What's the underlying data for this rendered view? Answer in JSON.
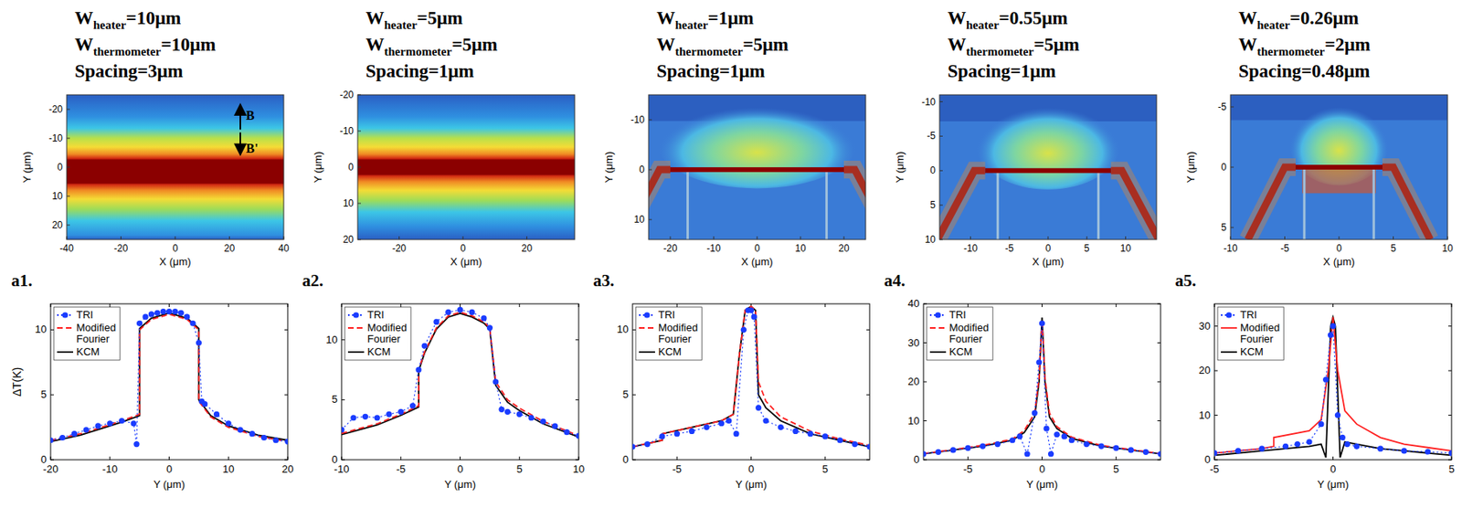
{
  "panels": [
    {
      "label": "a1.",
      "header": [
        {
          "main": "W",
          "sub": "heater",
          "rest": "=10μm"
        },
        {
          "main": "W",
          "sub": "thermometer",
          "rest": "=10μm"
        },
        {
          "main": "Spacing=3μm"
        }
      ],
      "image": {
        "xlabel": "X (μm)",
        "ylabel": "Y (μm)",
        "xlim": [
          -40,
          40
        ],
        "xticks": [
          -40,
          -20,
          0,
          20,
          40
        ],
        "ylim": [
          -25,
          25
        ],
        "yticks": [
          -20,
          -10,
          0,
          10,
          20
        ],
        "annotations": [
          "B",
          "B'"
        ]
      }
    },
    {
      "label": "a2.",
      "header": [
        {
          "main": "W",
          "sub": "heater",
          "rest": "=5μm"
        },
        {
          "main": "W",
          "sub": "thermometer",
          "rest": "=5μm"
        },
        {
          "main": "Spacing=1μm"
        }
      ],
      "image": {
        "xlabel": "X (μm)",
        "ylabel": "Y (μm)",
        "xlim": [
          -33,
          35
        ],
        "xticks": [
          -20,
          0,
          20
        ],
        "ylim": [
          -20,
          20
        ],
        "yticks": [
          -20,
          -10,
          0,
          10,
          20
        ]
      }
    },
    {
      "label": "a3.",
      "header": [
        {
          "main": "W",
          "sub": "heater",
          "rest": "=1μm"
        },
        {
          "main": "W",
          "sub": "thermometer",
          "rest": "=5μm"
        },
        {
          "main": "Spacing=1μm"
        }
      ],
      "image": {
        "xlabel": "X (μm)",
        "ylabel": "Y (μm)",
        "xlim": [
          -25,
          25
        ],
        "xticks": [
          -20,
          -10,
          0,
          10,
          20
        ],
        "ylim": [
          -15,
          14
        ],
        "yticks": [
          -10,
          0,
          10
        ]
      }
    },
    {
      "label": "a4.",
      "header": [
        {
          "main": "W",
          "sub": "heater",
          "rest": "=0.55μm"
        },
        {
          "main": "W",
          "sub": "thermometer",
          "rest": "=5μm"
        },
        {
          "main": "Spacing=1μm"
        }
      ],
      "image": {
        "xlabel": "X (μm)",
        "ylabel": "Y (μm)",
        "xlim": [
          -14,
          14
        ],
        "xticks": [
          -10,
          -5,
          0,
          5,
          10
        ],
        "ylim": [
          -11,
          10
        ],
        "yticks": [
          -10,
          -5,
          0,
          5,
          10
        ]
      }
    },
    {
      "label": "a5.",
      "header": [
        {
          "main": "W",
          "sub": "heater",
          "rest": "=0.26μm"
        },
        {
          "main": "W",
          "sub": "thermometer",
          "rest": "=2μm"
        },
        {
          "main": "Spacing=0.48μm"
        }
      ],
      "image": {
        "xlabel": "X (μm)",
        "ylabel": "Y (μm)",
        "xlim": [
          -10,
          10
        ],
        "xticks": [
          -10,
          -5,
          0,
          5,
          10
        ],
        "ylim": [
          -6,
          6
        ],
        "yticks": [
          -5,
          0,
          5
        ]
      }
    }
  ],
  "chart_data": [
    {
      "type": "line",
      "xlabel": "Y (μm)",
      "ylabel": "ΔT(K)",
      "legend": "upper left",
      "xlim": [
        -20,
        20
      ],
      "xticks": [
        -20,
        -10,
        0,
        10,
        20
      ],
      "ylim": [
        0,
        12
      ],
      "yticks": [
        0,
        5,
        10
      ],
      "series": [
        {
          "name": "TRI",
          "color": "#1a3cff",
          "marker": "circle",
          "line_style": "dotted",
          "x": [
            -20,
            -18,
            -16,
            -14,
            -12,
            -10,
            -8,
            -6,
            -5.5,
            -5,
            -4,
            -3,
            -2,
            -1,
            0,
            1,
            2,
            3,
            4,
            5,
            5.5,
            6,
            8,
            10,
            12,
            14,
            16,
            18,
            20
          ],
          "values": [
            1.5,
            1.7,
            2.0,
            2.3,
            2.6,
            2.8,
            3.0,
            2.8,
            1.2,
            10.5,
            11.0,
            11.2,
            11.3,
            11.4,
            11.4,
            11.4,
            11.3,
            11.0,
            10.5,
            9.0,
            4.5,
            4.3,
            3.5,
            2.8,
            2.3,
            2.0,
            1.7,
            1.5,
            1.4
          ]
        },
        {
          "name": "Modified Fourier",
          "color": "#ff2020",
          "line_style": "dashed",
          "x": [
            -20,
            -15,
            -10,
            -8,
            -5,
            -5,
            -3,
            0,
            3,
            5,
            5,
            7,
            10,
            15,
            20
          ],
          "values": [
            1.5,
            2.0,
            2.7,
            3.0,
            3.5,
            10.0,
            10.8,
            11.2,
            10.8,
            10.0,
            4.5,
            3.3,
            2.5,
            1.8,
            1.4
          ]
        },
        {
          "name": "KCM",
          "color": "#000000",
          "line_style": "solid",
          "x": [
            -20,
            -15,
            -10,
            -8,
            -5,
            -5,
            -3,
            0,
            3,
            5,
            5,
            7,
            10,
            15,
            20
          ],
          "values": [
            1.4,
            1.9,
            2.6,
            2.9,
            3.4,
            10.1,
            10.9,
            11.3,
            10.9,
            10.1,
            4.6,
            3.4,
            2.6,
            1.9,
            1.5
          ]
        }
      ]
    },
    {
      "type": "line",
      "xlabel": "Y (μm)",
      "legend": "upper left",
      "xlim": [
        -10,
        10
      ],
      "xticks": [
        -10,
        -5,
        0,
        5,
        10
      ],
      "ylim": [
        0,
        13
      ],
      "yticks": [
        0,
        5,
        10
      ],
      "series": [
        {
          "name": "TRI",
          "color": "#1a3cff",
          "marker": "circle",
          "line_style": "dotted",
          "x": [
            -10,
            -9,
            -8,
            -7,
            -6,
            -5,
            -4,
            -3.5,
            -3,
            -2,
            -1,
            0,
            1,
            2,
            2.5,
            3,
            3.5,
            4,
            5,
            6,
            7,
            8,
            9,
            10
          ],
          "values": [
            2.5,
            3.5,
            3.6,
            3.5,
            3.8,
            4.0,
            4.5,
            7.5,
            9.5,
            11.5,
            12.3,
            12.5,
            12.3,
            11.8,
            11.0,
            6.5,
            4.2,
            4.0,
            3.8,
            3.5,
            3.2,
            2.8,
            2.3,
            2.0
          ]
        },
        {
          "name": "Modified Fourier",
          "color": "#ff2020",
          "line_style": "dashed",
          "x": [
            -10,
            -7,
            -5,
            -3.5,
            -3.5,
            -3,
            -2,
            -1,
            0,
            1,
            2,
            2.5,
            3,
            4,
            5,
            7,
            10
          ],
          "values": [
            2.2,
            3.0,
            3.8,
            4.5,
            7.5,
            9.0,
            11.0,
            12.0,
            12.3,
            12.0,
            11.5,
            11.0,
            6.5,
            5.0,
            4.3,
            3.2,
            2.0
          ]
        },
        {
          "name": "KCM",
          "color": "#000000",
          "line_style": "solid",
          "x": [
            -10,
            -7,
            -5,
            -3.5,
            -3.5,
            -3,
            -2,
            -1,
            0,
            1,
            2,
            2.5,
            3,
            4,
            5,
            7,
            10
          ],
          "values": [
            2.1,
            2.9,
            3.7,
            4.4,
            7.4,
            8.9,
            10.9,
            11.9,
            12.2,
            11.9,
            11.4,
            10.9,
            6.2,
            4.8,
            4.1,
            3.0,
            1.9
          ]
        }
      ]
    },
    {
      "type": "line",
      "xlabel": "Y (μm)",
      "legend": "upper left",
      "xlim": [
        -8,
        8
      ],
      "xticks": [
        -5,
        0,
        5
      ],
      "ylim": [
        0,
        12
      ],
      "yticks": [
        0,
        5,
        10
      ],
      "series": [
        {
          "name": "TRI",
          "color": "#1a3cff",
          "marker": "circle",
          "line_style": "dotted",
          "x": [
            -8,
            -7,
            -6,
            -5,
            -4,
            -3,
            -2,
            -1.5,
            -1,
            -0.5,
            -0.2,
            0,
            0.2,
            0.5,
            1,
            2,
            3,
            4,
            5,
            6,
            7,
            8
          ],
          "values": [
            1.0,
            1.2,
            1.8,
            2.0,
            2.2,
            2.5,
            2.8,
            3.0,
            2.0,
            10.0,
            11.5,
            11.5,
            11.0,
            4.0,
            3.0,
            2.5,
            2.2,
            2.0,
            1.8,
            1.5,
            1.2,
            1.0
          ]
        },
        {
          "name": "Modified Fourier",
          "color": "#ff2020",
          "line_style": "dashed",
          "x": [
            -8,
            -6,
            -6,
            -4,
            -2,
            -1.2,
            -0.8,
            -0.4,
            0,
            0.3,
            0.5,
            1,
            2,
            4,
            6,
            8
          ],
          "values": [
            1.0,
            1.5,
            2.0,
            2.5,
            3.0,
            3.5,
            8.0,
            11.5,
            11.8,
            11.5,
            6.0,
            4.5,
            3.3,
            2.2,
            1.6,
            1.1
          ]
        },
        {
          "name": "KCM",
          "color": "#000000",
          "line_style": "solid",
          "x": [
            -8,
            -6,
            -6,
            -4,
            -2,
            -1.2,
            -0.8,
            -0.4,
            0,
            0.3,
            0.5,
            1,
            2,
            4,
            6,
            8
          ],
          "values": [
            1.0,
            1.5,
            2.0,
            2.5,
            3.0,
            3.5,
            8.0,
            11.5,
            11.8,
            11.5,
            5.0,
            4.0,
            3.0,
            2.0,
            1.5,
            1.0
          ]
        }
      ]
    },
    {
      "type": "line",
      "xlabel": "Y (μm)",
      "legend": "upper left",
      "xlim": [
        -8,
        8
      ],
      "xticks": [
        -5,
        0,
        5
      ],
      "ylim": [
        0,
        40
      ],
      "yticks": [
        0,
        10,
        20,
        30,
        40
      ],
      "series": [
        {
          "name": "TRI",
          "color": "#1a3cff",
          "marker": "circle",
          "line_style": "dotted",
          "x": [
            -8,
            -7,
            -6,
            -5,
            -4,
            -3,
            -2,
            -1.5,
            -1,
            -0.5,
            -0.2,
            0,
            0.3,
            0.6,
            1,
            1.5,
            2,
            3,
            4,
            5,
            6,
            7,
            8
          ],
          "values": [
            1.5,
            2.0,
            2.5,
            3.0,
            3.5,
            4.0,
            5.0,
            6.0,
            1.5,
            12.0,
            25.0,
            35.0,
            8.0,
            1.5,
            6.5,
            6.0,
            5.0,
            4.0,
            3.5,
            3.0,
            2.5,
            2.0,
            1.5
          ]
        },
        {
          "name": "Modified Fourier",
          "color": "#ff2020",
          "line_style": "dashed",
          "x": [
            -8,
            -6,
            -4,
            -2,
            -1.2,
            -0.5,
            -0.2,
            0,
            0.2,
            0.5,
            1,
            2,
            4,
            6,
            8
          ],
          "values": [
            1.6,
            2.6,
            3.7,
            5.3,
            7.5,
            12.0,
            21.0,
            36.0,
            21.0,
            12.0,
            8.5,
            5.8,
            3.7,
            2.6,
            1.6
          ]
        },
        {
          "name": "KCM",
          "color": "#000000",
          "line_style": "solid",
          "x": [
            -8,
            -6,
            -4,
            -2,
            -1.2,
            -0.5,
            -0.2,
            0,
            0.2,
            0.5,
            1,
            2,
            4,
            6,
            8
          ],
          "values": [
            1.5,
            2.5,
            3.5,
            5.0,
            7.0,
            11.0,
            20.0,
            36.5,
            20.0,
            11.0,
            8.0,
            5.5,
            3.5,
            2.5,
            1.5
          ]
        }
      ]
    },
    {
      "type": "line",
      "xlabel": "Y (μm)",
      "legend": "upper left",
      "xlim": [
        -5,
        5
      ],
      "xticks": [
        -5,
        0,
        5
      ],
      "ylim": [
        0,
        35
      ],
      "yticks": [
        0,
        10,
        20,
        30
      ],
      "series": [
        {
          "name": "TRI",
          "color": "#1a3cff",
          "marker": "circle",
          "line_style": "dotted",
          "x": [
            -5,
            -4,
            -3,
            -2,
            -1.5,
            -1,
            -0.5,
            -0.3,
            -0.1,
            0,
            0.2,
            0.4,
            0.6,
            1,
            2,
            3,
            4,
            5
          ],
          "values": [
            1.5,
            2.0,
            2.5,
            3.0,
            3.5,
            4.0,
            8.0,
            18.0,
            28.0,
            30.0,
            10.0,
            5.0,
            3.5,
            3.0,
            2.5,
            2.0,
            1.8,
            1.5
          ]
        },
        {
          "name": "Modified Fourier",
          "color": "#ff2020",
          "line_style": "solid",
          "x": [
            -5,
            -3,
            -2.5,
            -2.5,
            -1,
            -0.5,
            -0.2,
            0,
            0.2,
            0.5,
            1,
            2,
            3,
            5
          ],
          "values": [
            1.5,
            2.5,
            3.0,
            5.0,
            6.5,
            9.0,
            20.0,
            32.0,
            20.0,
            11.0,
            8.0,
            5.0,
            3.5,
            2.0
          ]
        },
        {
          "name": "KCM",
          "color": "#000000",
          "line_style": "solid",
          "x": [
            -5,
            -3,
            -2,
            -1,
            -0.5,
            -0.3,
            -0.1,
            0,
            0.1,
            0.3,
            0.5,
            1,
            2,
            3,
            5
          ],
          "values": [
            1.0,
            2.0,
            2.5,
            3.0,
            3.5,
            0.5,
            30.0,
            32.0,
            30.0,
            0.5,
            4.0,
            3.5,
            2.5,
            2.0,
            1.0
          ]
        }
      ]
    }
  ]
}
